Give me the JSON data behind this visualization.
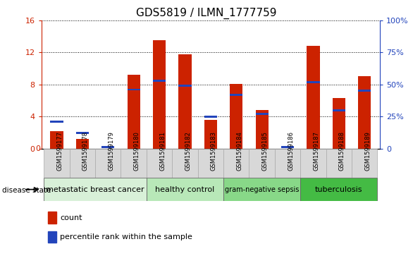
{
  "title": "GDS5819 / ILMN_1777759",
  "samples": [
    "GSM1599177",
    "GSM1599178",
    "GSM1599179",
    "GSM1599180",
    "GSM1599181",
    "GSM1599182",
    "GSM1599183",
    "GSM1599184",
    "GSM1599185",
    "GSM1599186",
    "GSM1599187",
    "GSM1599188",
    "GSM1599189"
  ],
  "count": [
    2.2,
    1.2,
    0.0,
    9.2,
    13.5,
    11.8,
    3.6,
    8.1,
    4.8,
    0.0,
    12.8,
    6.3,
    9.0
  ],
  "percentile": [
    21.0,
    12.0,
    1.0,
    46.0,
    53.0,
    49.0,
    25.0,
    42.0,
    27.0,
    1.0,
    52.0,
    30.0,
    45.0
  ],
  "groups": [
    {
      "label": "metastatic breast cancer",
      "start": 0,
      "end": 3,
      "color": "#d8f0d8"
    },
    {
      "label": "healthy control",
      "start": 4,
      "end": 6,
      "color": "#b8e8b8"
    },
    {
      "label": "gram-negative sepsis",
      "start": 7,
      "end": 9,
      "color": "#88d888"
    },
    {
      "label": "tuberculosis",
      "start": 10,
      "end": 12,
      "color": "#44bb44"
    }
  ],
  "ylim_left": [
    0,
    16
  ],
  "ylim_right": [
    0,
    100
  ],
  "yticks_left": [
    0,
    4,
    8,
    12,
    16
  ],
  "yticks_right": [
    0,
    25,
    50,
    75,
    100
  ],
  "bar_color_red": "#cc2200",
  "bar_color_blue": "#2244bb",
  "bar_width": 0.5,
  "grid_color": "black",
  "bg_color": "#ffffff",
  "tick_bg_color": "#d8d8d8",
  "tick_color_left": "#cc2200",
  "tick_color_right": "#2244bb",
  "blue_bar_thickness": 0.25
}
